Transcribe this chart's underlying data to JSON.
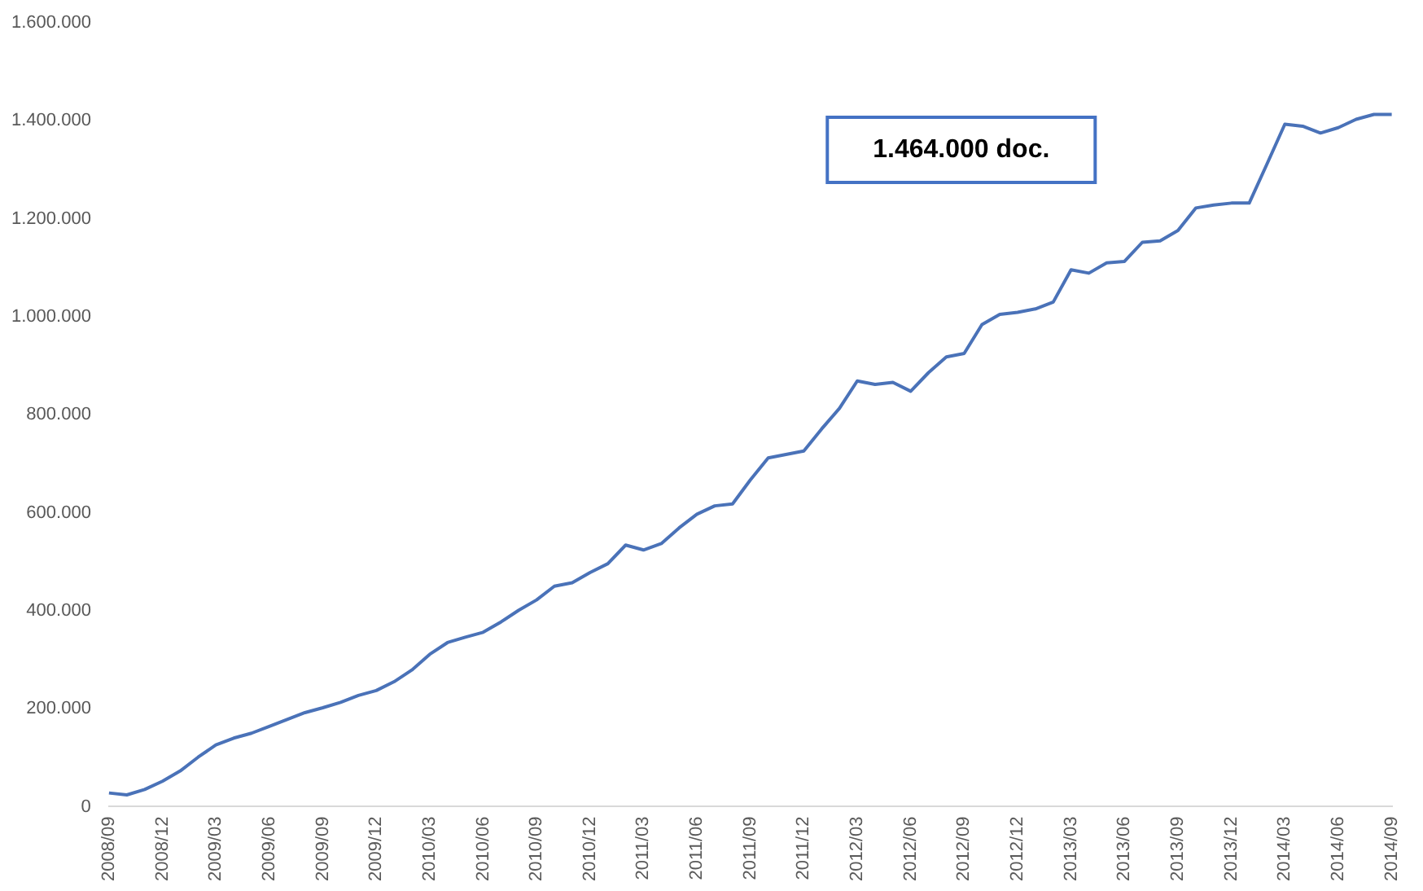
{
  "chart_data": {
    "type": "line",
    "categories": [
      "2008/09",
      null,
      null,
      "2008/12",
      null,
      null,
      "2009/03",
      null,
      null,
      "2009/06",
      null,
      null,
      "2009/09",
      null,
      null,
      "2009/12",
      null,
      null,
      "2010/03",
      null,
      null,
      "2010/06",
      null,
      null,
      "2010/09",
      null,
      null,
      "2010/12",
      null,
      null,
      "2011/03",
      null,
      null,
      "2011/06",
      null,
      null,
      "2011/09",
      null,
      null,
      "2011/12",
      null,
      null,
      "2012/03",
      null,
      null,
      "2012/06",
      null,
      null,
      "2012/09",
      null,
      null,
      "2012/12",
      null,
      null,
      "2013/03",
      null,
      null,
      "2013/06",
      null,
      null,
      "2013/09",
      null,
      null,
      "2013/12",
      null,
      null,
      "2014/03",
      null,
      null,
      "2014/06",
      null,
      null,
      "2014/09"
    ],
    "series": [
      {
        "color": "#4a72b8",
        "values": [
          28000,
          24000,
          35000,
          52000,
          73000,
          101000,
          126000,
          140000,
          150000,
          164000,
          178000,
          192000,
          202000,
          213000,
          227000,
          237000,
          255000,
          279000,
          311000,
          335000,
          346000,
          356000,
          377000,
          401000,
          422000,
          450000,
          457000,
          478000,
          496000,
          534000,
          524000,
          537000,
          569000,
          597000,
          614000,
          618000,
          667000,
          712000,
          719000,
          726000,
          771000,
          813000,
          869000,
          862000,
          866000,
          848000,
          886000,
          918000,
          925000,
          984000,
          1005000,
          1009000,
          1016000,
          1030000,
          1096000,
          1089000,
          1110000,
          1113000,
          1152000,
          1155000,
          1176000,
          1222000,
          1228000,
          1232000,
          1232000,
          1312000,
          1393000,
          1389000,
          1375000,
          1386000,
          1403000,
          1413000,
          1413000
        ]
      }
    ],
    "ylim": [
      0,
      1600000
    ],
    "yticks": [
      0,
      {
        "value": 200000,
        "label": "200.000"
      },
      {
        "value": 400000,
        "label": "400.000"
      },
      {
        "value": 600000,
        "label": "600.000"
      },
      {
        "value": 800000,
        "label": "800.000"
      },
      {
        "value": 1000000,
        "label": "1.000.000"
      },
      {
        "value": 1200000,
        "label": "1.200.000"
      },
      {
        "value": 1400000,
        "label": "1.400.000"
      },
      {
        "value": 1600000,
        "label": "1.600.000"
      }
    ],
    "grid": false,
    "legend": false,
    "marker": "none",
    "line_style": "solid",
    "annotations": [
      "1.464.000 doc."
    ]
  }
}
